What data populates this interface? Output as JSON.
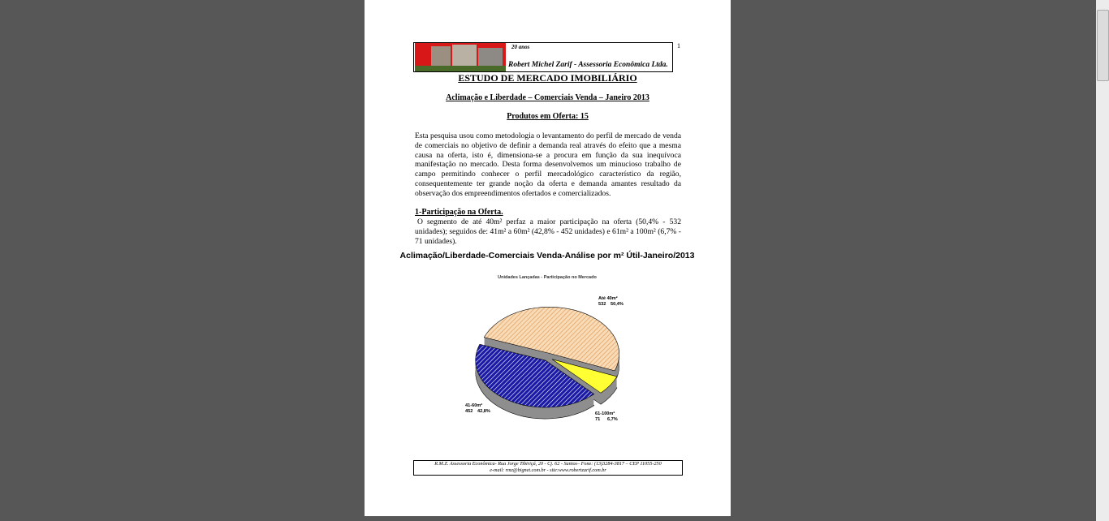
{
  "header": {
    "anniversary": "20 anos",
    "company": "Robert Michel Zarif - Assessoria Econômica Ltda.",
    "page_number": "1"
  },
  "title": "ESTUDO DE MERCADO IMOBILIÁRIO",
  "subtitle": "Aclimação e Liberdade – Comerciais Venda – Janeiro 2013",
  "products": "Produtos em Oferta: 15",
  "paragraphs": [
    "Esta pesquisa usou como metodologia o levantamento do perfil de mercado de venda de comerciais no objetivo de definir a demanda real através do efeito que a mesma causa na oferta, isto é, dimensiona-se a procura em função da sua inequívoca manifestação no mercado. Desta forma desenvolvemos um minucioso trabalho de campo permitindo conhecer o perfil mercadológico característico da região, consequentemente ter grande noção da oferta e demanda amantes resultado da observação dos empreendimentos ofertados e comercializados.",
    "O segmento de até 40m² perfaz a maior participação na oferta (50,4% - 532 unidades); seguidos de: 41m² a 60m² (42,8% - 452 unidades) e 61m² a 100m² (6,7% - 71 unidades)."
  ],
  "section_heading": "1-Participação na Oferta.",
  "chart_data": {
    "type": "pie",
    "title": "Aclimação/Liberdade-Comerciais Venda-Análise por m² Útil-Janeiro/2013",
    "subtitle": "Unidades Lançadas - Participação no Mercado",
    "categories": [
      "Até 40m²",
      "61-100m²",
      "41-60m²"
    ],
    "units": [
      532,
      71,
      452
    ],
    "values": [
      50.4,
      6.7,
      42.8
    ],
    "value_labels": [
      "50,4%",
      "6,7%",
      "42,8%"
    ],
    "colors": [
      "#f6cf9f",
      "#ffff33",
      "#1a1aa6"
    ]
  },
  "footer": {
    "address": "R.M.Z. Assessoria Econômica- Rua Jorge Tibiriçá, 20 - Cj. 62 - Santos– Fone: (13)3284-3817 – CEP 11055-250",
    "contact": "e-mail: rmz@bignet.com.br  -  site:www.robertzarif.com.br"
  }
}
